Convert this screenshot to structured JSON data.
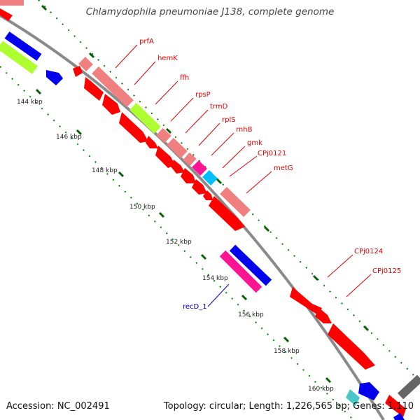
{
  "title": "Chlamydophila pneumoniae J138, complete genome",
  "footer": {
    "accession": "Accession: NC_002491",
    "topology": "Topology: circular; Length: 1,226,565 bp; Genes: 1,110"
  },
  "colors": {
    "background": "#ffffff",
    "backbone": "#8a8a8a",
    "gene_red": "#ff0000",
    "gene_pink": "#f08080",
    "gene_blue": "#0000ee",
    "gene_green": "#adff2f",
    "gene_magenta": "#ff1493",
    "gene_cyan": "#00bfff",
    "gene_gray": "#808080",
    "tick_green": "#008000",
    "label_red": "#dd0000",
    "label_blue": "#0000cc"
  },
  "ruler": [
    "144 kbp",
    "146 kbp",
    "148 kbp",
    "150 kbp",
    "152 kbp",
    "154 kbp",
    "156 kbp",
    "158 kbp",
    "160 kbp"
  ],
  "gene_labels": [
    {
      "text": "prfA",
      "color": "red"
    },
    {
      "text": "hemK",
      "color": "red"
    },
    {
      "text": "ffh",
      "color": "red"
    },
    {
      "text": "rpsP",
      "color": "red"
    },
    {
      "text": "trmD",
      "color": "red"
    },
    {
      "text": "rplS",
      "color": "red"
    },
    {
      "text": "rnhB",
      "color": "red"
    },
    {
      "text": "gmk",
      "color": "red"
    },
    {
      "text": "CPj0121",
      "color": "red"
    },
    {
      "text": "metG",
      "color": "red"
    },
    {
      "text": "CPj0124",
      "color": "red"
    },
    {
      "text": "CPj0125",
      "color": "red"
    },
    {
      "text": "recD_1",
      "color": "blue"
    }
  ]
}
